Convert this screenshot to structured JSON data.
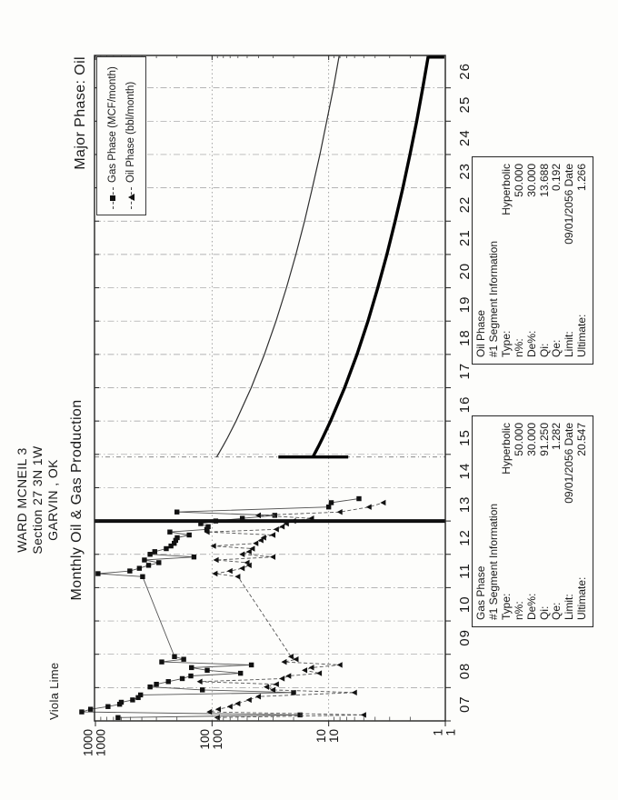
{
  "header": {
    "well_name": "WARD MCNEIL 3",
    "section_line": "Section 27 3N 1W",
    "city_line": "GARVIN , OK",
    "chart_title": "Monthly Oil & Gas Production",
    "major_phase": "Major Phase: Oil",
    "zone_label": "Viola Lime"
  },
  "legend": {
    "items": [
      {
        "label": "Gas Phase (MCF/month)",
        "marker": "square"
      },
      {
        "label": "Oil Phase (bbl/month)",
        "marker": "triangle"
      }
    ]
  },
  "boxes": {
    "gas": {
      "title": "Gas Phase",
      "subtitle": "#1  Segment Information",
      "rows": [
        {
          "label": "Type:",
          "value": "Hyperbolic"
        },
        {
          "label": "n%:",
          "value": "50.000"
        },
        {
          "label": "De%:",
          "value": "30.000"
        },
        {
          "label": "Qi:",
          "value": "91.250"
        },
        {
          "label": "Qe:",
          "value": "1.282"
        },
        {
          "label": "Limit:",
          "value": "09/01/2056 Date"
        },
        {
          "label": "Ultimate:",
          "value": "20.547"
        }
      ]
    },
    "oil": {
      "title": "Oil Phase",
      "subtitle": "#1  Segment Information",
      "rows": [
        {
          "label": "Type:",
          "value": "Hyperbolic"
        },
        {
          "label": "n%:",
          "value": "50.000"
        },
        {
          "label": "De%:",
          "value": "30.000"
        },
        {
          "label": "Qi:",
          "value": "13.688"
        },
        {
          "label": "Qe:",
          "value": "0.192"
        },
        {
          "label": "Limit:",
          "value": "09/01/2056 Date"
        },
        {
          "label": "Ultimate:",
          "value": "1.266"
        }
      ]
    }
  },
  "chart_data": {
    "type": "line",
    "title": "Monthly Oil & Gas Production",
    "orientation": "rotated 90deg CCW on portrait page",
    "x_axis": {
      "label": "year (2007-2026)",
      "tick_years": [
        2007,
        2008,
        2009,
        2010,
        2011,
        2012,
        2013,
        2014,
        2015,
        2016,
        2017,
        2018,
        2019,
        2020,
        2021,
        2022,
        2023,
        2024,
        2025,
        2026
      ],
      "tick_labels": [
        "07",
        "08",
        "09",
        "10",
        "11",
        "12",
        "13",
        "14",
        "15",
        "16",
        "17",
        "18",
        "19",
        "20",
        "21",
        "22",
        "23",
        "24",
        "25",
        "26"
      ],
      "range": [
        2007,
        2027
      ]
    },
    "y_axis": {
      "scale": "log",
      "range": [
        1,
        1000
      ],
      "decades": [
        1000,
        100,
        10,
        1
      ],
      "tick_labels": [
        "1000",
        "100",
        "10",
        "1"
      ],
      "labels_doubled": true
    },
    "grid": {
      "vertical_year_lines": true,
      "horizontal_decade_lines": true
    },
    "annotations": {
      "as_of_line_year": 2013.0,
      "forecast_start_year": 2014.92,
      "oil_start_bar": {
        "year": 2014.92,
        "value_top": 27,
        "value_bottom": 6.8
      },
      "oil_terminal_drop": {
        "year": 2026.9,
        "from_value": 1.4,
        "to_value": 1.02
      }
    },
    "series": [
      {
        "name": "Gas Phase (MCF/month)",
        "role": "history",
        "marker": "square",
        "line": "solid",
        "points": [
          [
            2007.1,
            640
          ],
          [
            2007.18,
            17.6
          ],
          [
            2007.27,
            1310
          ],
          [
            2007.35,
            1100
          ],
          [
            2007.43,
            780
          ],
          [
            2007.5,
            620
          ],
          [
            2007.56,
            600
          ],
          [
            2007.63,
            480
          ],
          [
            2007.7,
            430
          ],
          [
            2007.78,
            410
          ],
          [
            2007.85,
            20
          ],
          [
            2007.93,
            121
          ],
          [
            2008.02,
            340
          ],
          [
            2008.1,
            300
          ],
          [
            2008.18,
            237
          ],
          [
            2008.27,
            180
          ],
          [
            2008.35,
            152
          ],
          [
            2008.43,
            57
          ],
          [
            2008.52,
            110
          ],
          [
            2008.6,
            150
          ],
          [
            2008.68,
            46
          ],
          [
            2008.77,
            270
          ],
          [
            2008.85,
            175
          ],
          [
            2008.93,
            210
          ],
          [
            2011.33,
            394
          ],
          [
            2011.42,
            950
          ],
          [
            2011.5,
            507
          ],
          [
            2011.58,
            420
          ],
          [
            2011.67,
            350
          ],
          [
            2011.75,
            286
          ],
          [
            2011.83,
            380
          ],
          [
            2011.92,
            143
          ],
          [
            2012.0,
            340
          ],
          [
            2012.08,
            310
          ],
          [
            2012.17,
            247
          ],
          [
            2012.25,
            225
          ],
          [
            2012.33,
            211
          ],
          [
            2012.42,
            205
          ],
          [
            2012.5,
            199
          ],
          [
            2012.58,
            157
          ],
          [
            2012.67,
            230
          ],
          [
            2012.75,
            111
          ],
          [
            2012.83,
            108
          ],
          [
            2012.92,
            125
          ],
          [
            2013.0,
            93
          ],
          [
            2013.08,
            55
          ],
          [
            2013.17,
            29
          ],
          [
            2013.27,
            200
          ],
          [
            2013.42,
            10
          ],
          [
            2013.55,
            9.5
          ],
          [
            2013.67,
            5.5
          ]
        ]
      },
      {
        "name": "Oil Phase (bbl/month)",
        "role": "history",
        "marker": "triangle",
        "line": "dashed",
        "points": [
          [
            2007.1,
            90
          ],
          [
            2007.18,
            5
          ],
          [
            2007.27,
            105
          ],
          [
            2007.35,
            88
          ],
          [
            2007.43,
            70
          ],
          [
            2007.52,
            60
          ],
          [
            2007.63,
            48
          ],
          [
            2007.73,
            40
          ],
          [
            2007.85,
            6
          ],
          [
            2007.93,
            30
          ],
          [
            2008.02,
            34
          ],
          [
            2008.1,
            28
          ],
          [
            2008.18,
            127
          ],
          [
            2008.27,
            25
          ],
          [
            2008.35,
            22
          ],
          [
            2008.43,
            12
          ],
          [
            2008.52,
            16
          ],
          [
            2008.6,
            14
          ],
          [
            2008.68,
            8
          ],
          [
            2008.77,
            24
          ],
          [
            2008.85,
            19
          ],
          [
            2008.93,
            21
          ],
          [
            2011.33,
            60
          ],
          [
            2011.42,
            94
          ],
          [
            2011.5,
            70
          ],
          [
            2011.58,
            55
          ],
          [
            2011.67,
            48
          ],
          [
            2011.75,
            50
          ],
          [
            2011.83,
            92
          ],
          [
            2011.92,
            30
          ],
          [
            2012.0,
            55
          ],
          [
            2012.08,
            48
          ],
          [
            2012.17,
            45
          ],
          [
            2012.25,
            97
          ],
          [
            2012.33,
            42
          ],
          [
            2012.42,
            38
          ],
          [
            2012.5,
            36
          ],
          [
            2012.58,
            30
          ],
          [
            2012.67,
            110
          ],
          [
            2012.75,
            28
          ],
          [
            2012.83,
            25
          ],
          [
            2012.92,
            23
          ],
          [
            2013.0,
            20
          ],
          [
            2013.08,
            14
          ],
          [
            2013.17,
            40
          ],
          [
            2013.27,
            8
          ],
          [
            2013.42,
            4.5
          ],
          [
            2013.55,
            3.4
          ]
        ]
      },
      {
        "name": "Gas Phase forecast (hyperbolic)",
        "role": "forecast",
        "marker": "none",
        "line": "thin",
        "points": [
          [
            2014.92,
            91.25
          ],
          [
            2015.0,
            88.5
          ],
          [
            2015.25,
            80.5
          ],
          [
            2015.5,
            73.6
          ],
          [
            2016,
            62.3
          ],
          [
            2017,
            46.2
          ],
          [
            2018,
            35.6
          ],
          [
            2019,
            28.3
          ],
          [
            2020,
            23.0
          ],
          [
            2021,
            19.1
          ],
          [
            2022,
            16.1
          ],
          [
            2023,
            13.8
          ],
          [
            2024,
            11.9
          ],
          [
            2025,
            10.4
          ],
          [
            2026,
            9.1
          ],
          [
            2026.95,
            8.15
          ]
        ]
      },
      {
        "name": "Oil Phase forecast (hyperbolic)",
        "role": "forecast",
        "marker": "none",
        "line": "thick",
        "points": [
          [
            2014.92,
            13.688
          ],
          [
            2015.0,
            13.3
          ],
          [
            2015.25,
            12.2
          ],
          [
            2015.5,
            11.25
          ],
          [
            2016,
            9.64
          ],
          [
            2017,
            7.3
          ],
          [
            2018,
            5.72
          ],
          [
            2019,
            4.6
          ],
          [
            2020,
            3.79
          ],
          [
            2021,
            3.17
          ],
          [
            2022,
            2.69
          ],
          [
            2023,
            2.31
          ],
          [
            2024,
            2.01
          ],
          [
            2025,
            1.76
          ],
          [
            2026,
            1.56
          ],
          [
            2026.95,
            1.4
          ]
        ]
      }
    ]
  },
  "colors": {
    "ink": "#161616",
    "frame": "#222222",
    "grid": "#9c9c9c",
    "history_line": "#555555",
    "paper": "#fdfdfb"
  }
}
